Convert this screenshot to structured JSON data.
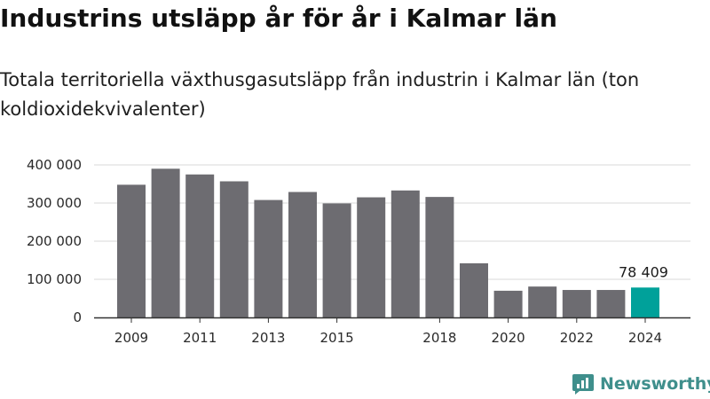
{
  "header": {
    "title": "Industrins utsläpp år för år i Kalmar län",
    "subtitle": "Totala territoriella växthusgasutsläpp från industrin i Kalmar län (ton koldioxidekvivalenter)"
  },
  "brand": {
    "name": "Newsworthy",
    "icon": "newsworthy-logo-icon",
    "color": "#3f8f8c"
  },
  "colors": {
    "bar": "#6d6c71",
    "highlight": "#00a19a",
    "grid": "#d8d8d8",
    "axis": "#333333"
  },
  "chart_data": {
    "type": "bar",
    "x": [
      2009,
      2010,
      2011,
      2012,
      2013,
      2014,
      2015,
      2016,
      2017,
      2018,
      2019,
      2020,
      2021,
      2022,
      2023,
      2024
    ],
    "values": [
      348000,
      390000,
      375000,
      357000,
      308000,
      329000,
      299000,
      315000,
      333000,
      316000,
      142000,
      70000,
      81000,
      72000,
      72000,
      78409
    ],
    "x_tick_labels": [
      "2009",
      "2011",
      "2013",
      "2015",
      "2018",
      "2020",
      "2022",
      "2024"
    ],
    "y_ticks": [
      0,
      100000,
      200000,
      300000,
      400000
    ],
    "y_tick_labels": [
      "0",
      "100 000",
      "200 000",
      "300 000",
      "400 000"
    ],
    "ylim": [
      0,
      400000
    ],
    "highlight_index": 15,
    "highlight_label": "78 409",
    "grid": true
  }
}
